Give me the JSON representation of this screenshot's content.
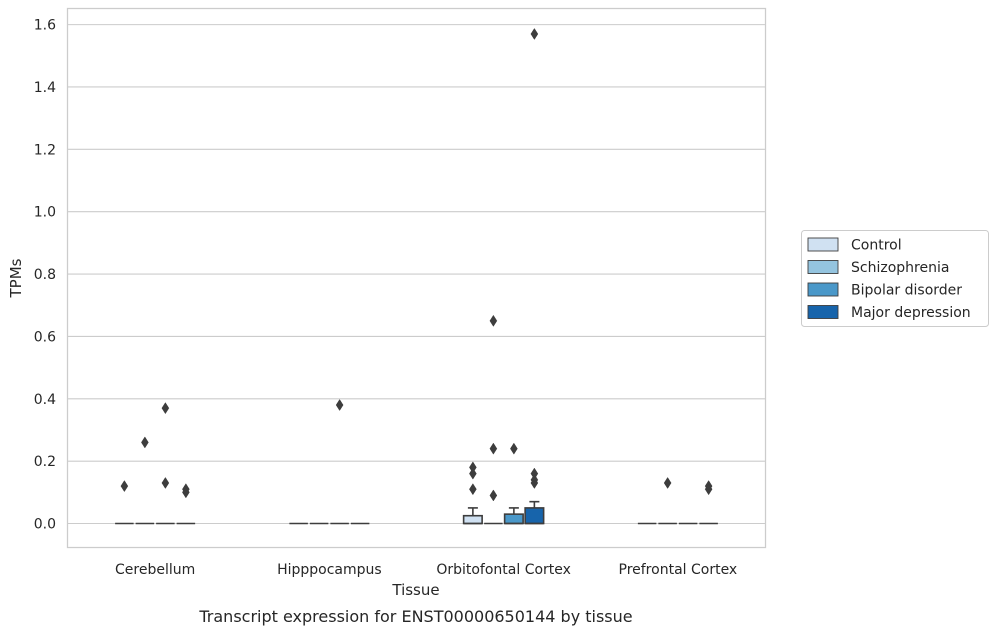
{
  "chart_data": {
    "type": "box",
    "caption": "Transcript expression for ENST00000650144 by tissue",
    "xlabel": "Tissue",
    "ylabel": "TPMs",
    "ylim": [
      -0.075,
      1.65
    ],
    "yticks": [
      "0.0",
      "0.2",
      "0.4",
      "0.6",
      "0.8",
      "1.0",
      "1.2",
      "1.4",
      "1.6"
    ],
    "grid": true,
    "legend_position": "right",
    "categories": [
      "Cerebellum",
      "Hipppocampus",
      "Orbitofontal Cortex",
      "Prefrontal Cortex"
    ],
    "series": [
      {
        "name": "Control",
        "color": "#d0e1f2",
        "boxes": [
          {
            "q1": 0,
            "median": 0,
            "q3": 0,
            "whisker_low": 0,
            "whisker_high": 0,
            "outliers": [
              0.12
            ]
          },
          {
            "q1": 0,
            "median": 0,
            "q3": 0,
            "whisker_low": 0,
            "whisker_high": 0,
            "outliers": []
          },
          {
            "q1": 0,
            "median": 0,
            "q3": 0.025,
            "whisker_low": 0,
            "whisker_high": 0.05,
            "outliers": [
              0.18,
              0.16,
              0.11
            ]
          },
          {
            "q1": 0,
            "median": 0,
            "q3": 0,
            "whisker_low": 0,
            "whisker_high": 0,
            "outliers": []
          }
        ]
      },
      {
        "name": "Schizophrenia",
        "color": "#94c4df",
        "boxes": [
          {
            "q1": 0,
            "median": 0,
            "q3": 0,
            "whisker_low": 0,
            "whisker_high": 0,
            "outliers": [
              0.26
            ]
          },
          {
            "q1": 0,
            "median": 0,
            "q3": 0,
            "whisker_low": 0,
            "whisker_high": 0,
            "outliers": []
          },
          {
            "q1": 0,
            "median": 0,
            "q3": 0,
            "whisker_low": 0,
            "whisker_high": 0,
            "outliers": [
              0.65,
              0.24,
              0.09
            ]
          },
          {
            "q1": 0,
            "median": 0,
            "q3": 0,
            "whisker_low": 0,
            "whisker_high": 0,
            "outliers": [
              0.13
            ]
          }
        ]
      },
      {
        "name": "Bipolar disorder",
        "color": "#4a98c9",
        "boxes": [
          {
            "q1": 0,
            "median": 0,
            "q3": 0,
            "whisker_low": 0,
            "whisker_high": 0,
            "outliers": [
              0.37,
              0.13
            ]
          },
          {
            "q1": 0,
            "median": 0,
            "q3": 0,
            "whisker_low": 0,
            "whisker_high": 0,
            "outliers": [
              0.38
            ]
          },
          {
            "q1": 0,
            "median": 0,
            "q3": 0.03,
            "whisker_low": 0,
            "whisker_high": 0.05,
            "outliers": [
              0.24
            ]
          },
          {
            "q1": 0,
            "median": 0,
            "q3": 0,
            "whisker_low": 0,
            "whisker_high": 0,
            "outliers": []
          }
        ]
      },
      {
        "name": "Major depression",
        "color": "#1764ab",
        "boxes": [
          {
            "q1": 0,
            "median": 0,
            "q3": 0,
            "whisker_low": 0,
            "whisker_high": 0,
            "outliers": [
              0.11,
              0.1
            ]
          },
          {
            "q1": 0,
            "median": 0,
            "q3": 0,
            "whisker_low": 0,
            "whisker_high": 0,
            "outliers": []
          },
          {
            "q1": 0,
            "median": 0,
            "q3": 0.05,
            "whisker_low": 0,
            "whisker_high": 0.07,
            "outliers": [
              1.57,
              0.16,
              0.14,
              0.13
            ]
          },
          {
            "q1": 0,
            "median": 0,
            "q3": 0,
            "whisker_low": 0,
            "whisker_high": 0,
            "outliers": [
              0.12,
              0.11
            ]
          }
        ]
      }
    ]
  }
}
